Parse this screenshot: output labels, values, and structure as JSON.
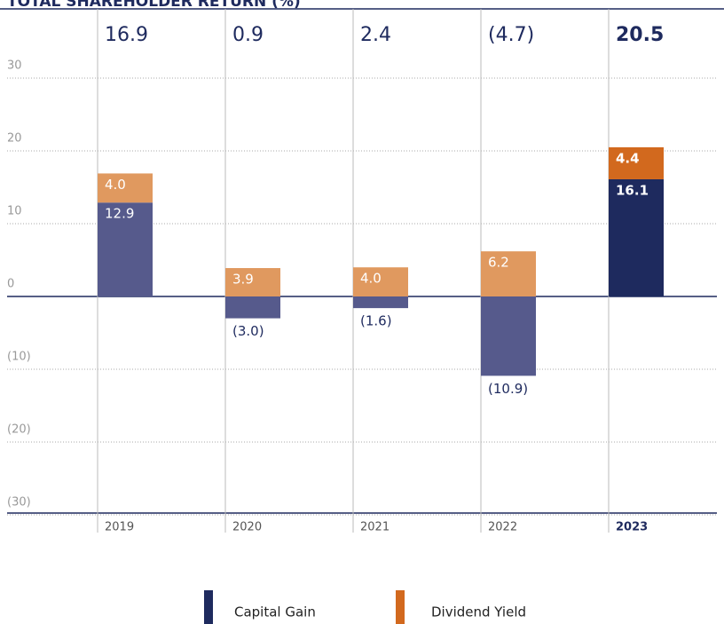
{
  "chart_data": {
    "type": "stacked_bar",
    "title": "TOTAL SHAREHOLDER RETURN (%)",
    "categories": [
      "2019",
      "2020",
      "2021",
      "2022",
      "2023"
    ],
    "emphasis": [
      false,
      false,
      false,
      false,
      true
    ],
    "totals": [
      16.9,
      0.9,
      2.4,
      -4.7,
      20.5
    ],
    "totals_labels": [
      "16.9",
      "0.9",
      "2.4",
      "(4.7)",
      "20.5"
    ],
    "series": [
      {
        "name": "Capital Gain",
        "color": "#1e2a5e",
        "colors": [
          "#565a8c",
          "#565a8c",
          "#565a8c",
          "#565a8c",
          "#1e2a5e"
        ],
        "values": [
          12.9,
          -3.0,
          -1.6,
          -10.9,
          16.1
        ],
        "value_labels": [
          "12.9",
          "(3.0)",
          "(1.6)",
          "(10.9)",
          "16.1"
        ]
      },
      {
        "name": "Dividend Yield",
        "color": "#d2691e",
        "colors": [
          "#e0995f",
          "#e0995f",
          "#e0995f",
          "#e0995f",
          "#d2691e"
        ],
        "values": [
          4.0,
          3.9,
          4.0,
          6.2,
          4.4
        ],
        "value_labels": [
          "4.0",
          "3.9",
          "4.0",
          "6.2",
          "4.4"
        ]
      }
    ],
    "ylim": [
      -30,
      30
    ],
    "yticks": [
      30,
      20,
      10,
      0,
      {
        "value": -10,
        "label": "(10)"
      },
      {
        "value": -20,
        "label": "(20)"
      },
      {
        "value": -30,
        "label": "(30)"
      }
    ],
    "grid": true
  }
}
